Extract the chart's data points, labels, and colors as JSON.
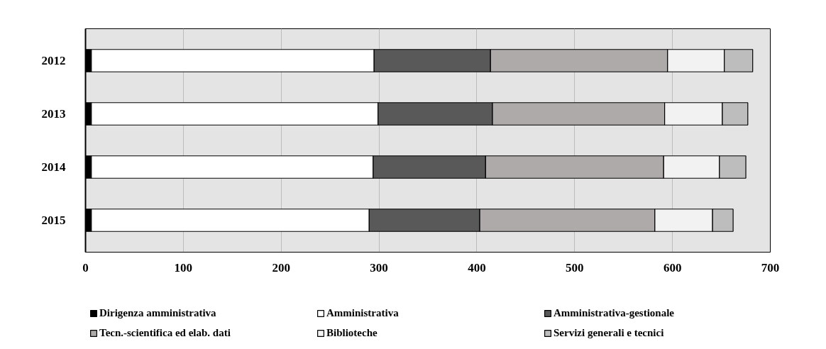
{
  "chart_data": {
    "type": "bar",
    "orientation": "horizontal",
    "stacked": true,
    "categories": [
      "2012",
      "2013",
      "2014",
      "2015"
    ],
    "series": [
      {
        "name": "Dirigenza amministrativa",
        "color": "#000000",
        "values": [
          6,
          6,
          6,
          6
        ]
      },
      {
        "name": "Amministrativa",
        "color": "#ffffff",
        "values": [
          289,
          293,
          288,
          284
        ]
      },
      {
        "name": "Amministrativa-gestionale",
        "color": "#595959",
        "values": [
          119,
          117,
          115,
          113
        ]
      },
      {
        "name": "Tecn.-scientifica ed elab. dati",
        "color": "#aeaaaa",
        "values": [
          181,
          176,
          182,
          179
        ]
      },
      {
        "name": "Biblioteche",
        "color": "#f2f2f2",
        "values": [
          58,
          59,
          57,
          59
        ]
      },
      {
        "name": "Servizi generali e tecnici",
        "color": "#bdbdbd",
        "values": [
          29,
          26,
          27,
          21
        ]
      }
    ],
    "xlim": [
      0,
      700
    ],
    "xticks": [
      0,
      100,
      200,
      300,
      400,
      500,
      600,
      700
    ],
    "grid": "x",
    "legend": "bottom"
  }
}
